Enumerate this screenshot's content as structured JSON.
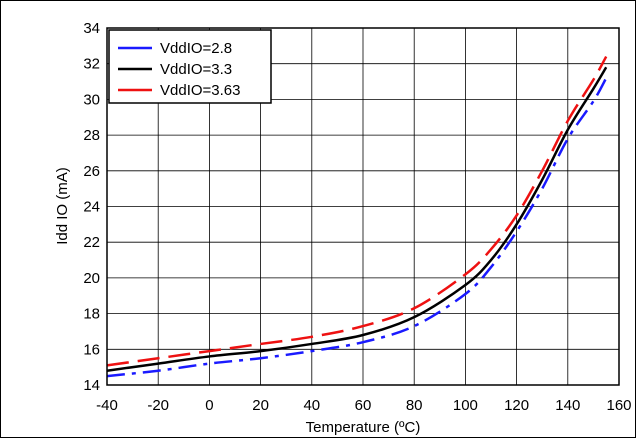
{
  "chart_data": {
    "type": "line",
    "title": "",
    "xlabel": "Temperature (ºC)",
    "ylabel": "Idd IO (mA)",
    "xlim": [
      -40,
      160
    ],
    "ylim": [
      14,
      34
    ],
    "xticks": [
      -40,
      -20,
      0,
      20,
      40,
      60,
      80,
      100,
      120,
      140,
      160
    ],
    "yticks": [
      14,
      16,
      18,
      20,
      22,
      24,
      26,
      28,
      30,
      32,
      34
    ],
    "grid": true,
    "legend_position": "top-left",
    "series": [
      {
        "name": "VddIO=2.8",
        "color": "#1a1aff",
        "dash": "dash-dot",
        "x": [
          -40,
          -20,
          0,
          20,
          40,
          60,
          80,
          100,
          110,
          120,
          130,
          140,
          150,
          155
        ],
        "y": [
          14.5,
          14.8,
          15.2,
          15.5,
          15.9,
          16.4,
          17.3,
          19.1,
          20.6,
          22.6,
          25.0,
          27.8,
          29.9,
          31.2
        ]
      },
      {
        "name": "VddIO=3.3",
        "color": "#000000",
        "dash": "solid",
        "x": [
          -40,
          -20,
          0,
          20,
          40,
          60,
          80,
          100,
          110,
          120,
          130,
          140,
          150,
          155
        ],
        "y": [
          14.8,
          15.2,
          15.6,
          15.9,
          16.3,
          16.8,
          17.8,
          19.6,
          21.0,
          23.0,
          25.5,
          28.3,
          30.6,
          31.8
        ]
      },
      {
        "name": "VddIO=3.63",
        "color": "#ee1111",
        "dash": "dash",
        "x": [
          -40,
          -20,
          0,
          20,
          40,
          60,
          80,
          100,
          110,
          120,
          130,
          140,
          150,
          155
        ],
        "y": [
          15.1,
          15.5,
          15.9,
          16.3,
          16.7,
          17.3,
          18.3,
          20.2,
          21.6,
          23.5,
          26.0,
          28.8,
          31.1,
          32.4
        ]
      }
    ]
  }
}
